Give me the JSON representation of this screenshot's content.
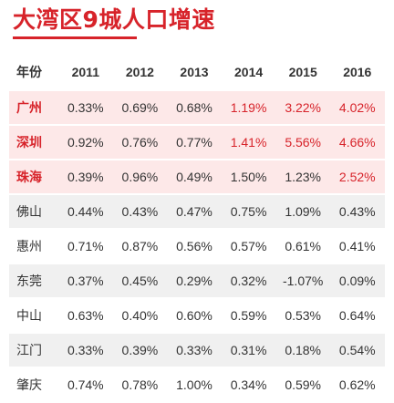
{
  "title": "大湾区9城人口增速",
  "colors": {
    "accent": "#d7232a",
    "highlight_row": "#fde8e8",
    "shade_row": "#f0f0f0"
  },
  "table": {
    "columns": [
      "年份",
      "2011",
      "2012",
      "2013",
      "2014",
      "2015",
      "2016"
    ],
    "rows": [
      {
        "city": "广州",
        "city_red": true,
        "values": [
          "0.33%",
          "0.69%",
          "0.68%",
          "1.19%",
          "3.22%",
          "4.02%"
        ],
        "red_values": [
          false,
          false,
          false,
          true,
          true,
          true
        ]
      },
      {
        "city": "深圳",
        "city_red": true,
        "values": [
          "0.92%",
          "0.76%",
          "0.77%",
          "1.41%",
          "5.56%",
          "4.66%"
        ],
        "red_values": [
          false,
          false,
          false,
          true,
          true,
          true
        ]
      },
      {
        "city": "珠海",
        "city_red": true,
        "values": [
          "0.39%",
          "0.96%",
          "0.49%",
          "1.50%",
          "1.23%",
          "2.52%"
        ],
        "red_values": [
          false,
          false,
          false,
          false,
          false,
          true
        ]
      },
      {
        "city": "佛山",
        "city_red": false,
        "values": [
          "0.44%",
          "0.43%",
          "0.47%",
          "0.75%",
          "1.09%",
          "0.43%"
        ],
        "red_values": [
          false,
          false,
          false,
          false,
          false,
          false
        ]
      },
      {
        "city": "惠州",
        "city_red": false,
        "values": [
          "0.71%",
          "0.87%",
          "0.56%",
          "0.57%",
          "0.61%",
          "0.41%"
        ],
        "red_values": [
          false,
          false,
          false,
          false,
          false,
          false
        ]
      },
      {
        "city": "东莞",
        "city_red": false,
        "values": [
          "0.37%",
          "0.45%",
          "0.29%",
          "0.32%",
          "-1.07%",
          "0.09%"
        ],
        "red_values": [
          false,
          false,
          false,
          false,
          false,
          false
        ]
      },
      {
        "city": "中山",
        "city_red": false,
        "values": [
          "0.63%",
          "0.40%",
          "0.60%",
          "0.59%",
          "0.53%",
          "0.64%"
        ],
        "red_values": [
          false,
          false,
          false,
          false,
          false,
          false
        ]
      },
      {
        "city": "江门",
        "city_red": false,
        "values": [
          "0.33%",
          "0.39%",
          "0.33%",
          "0.31%",
          "0.18%",
          "0.54%"
        ],
        "red_values": [
          false,
          false,
          false,
          false,
          false,
          false
        ]
      },
      {
        "city": "肇庆",
        "city_red": false,
        "values": [
          "0.74%",
          "0.78%",
          "1.00%",
          "0.34%",
          "0.59%",
          "0.62%"
        ],
        "red_values": [
          false,
          false,
          false,
          false,
          false,
          false
        ]
      }
    ]
  }
}
